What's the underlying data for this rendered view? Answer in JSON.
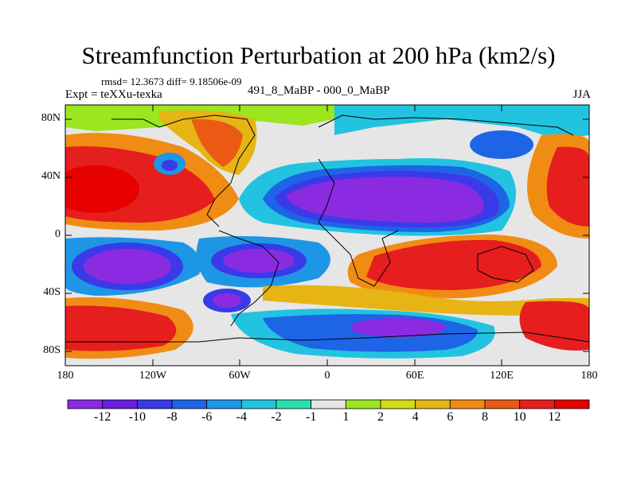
{
  "title": "Streamfunction Perturbation at 200 hPa (km2/s)",
  "stats": "rmsd= 12.3673 diff= 9.18506e-09",
  "experiment": "Expt = teXXu-texka",
  "subtitle": "491_8_MaBP - 000_0_MaBP",
  "season": "JJA",
  "axes": {
    "y_ticks": [
      "80N",
      "40N",
      "0",
      "40S",
      "80S"
    ],
    "x_ticks": [
      "180",
      "120W",
      "60W",
      "0",
      "60E",
      "120E",
      "180"
    ]
  },
  "colorbar": {
    "labels": [
      "-12",
      "-10",
      "-8",
      "-6",
      "-4",
      "-2",
      "-1",
      "1",
      "2",
      "4",
      "6",
      "8",
      "10",
      "12"
    ],
    "colors": [
      "#8a2be2",
      "#6a1ee0",
      "#3a3ae8",
      "#1e64e6",
      "#1e96e6",
      "#22c3e0",
      "#2be0b0",
      "#e6e6e6",
      "#9be61e",
      "#d2dc14",
      "#e6b414",
      "#f08c14",
      "#eb5a14",
      "#e61e1e",
      "#e60000"
    ]
  },
  "map_data": {
    "projection": "cylindrical-equidistant",
    "lon_range": [
      -180,
      180
    ],
    "lat_range": [
      -90,
      90
    ],
    "contour_levels": [
      -12,
      -10,
      -8,
      -6,
      -4,
      -2,
      -1,
      1,
      2,
      4,
      6,
      8,
      10,
      12
    ],
    "units": "km2/s"
  }
}
